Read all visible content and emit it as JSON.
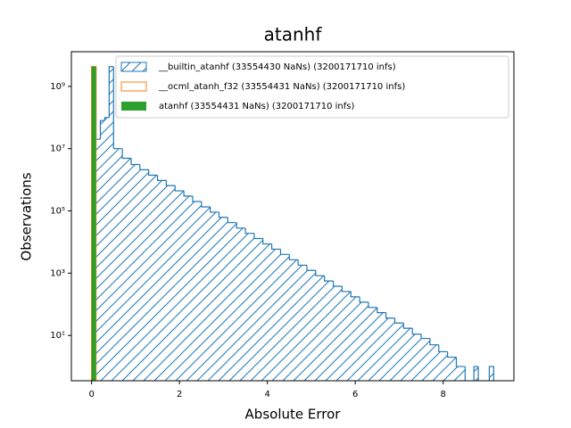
{
  "chart_data": {
    "type": "histogram",
    "title": "atanhf",
    "xlabel": "Absolute Error",
    "ylabel": "Observations",
    "yscale": "log",
    "xlim": [
      -0.46,
      9.61
    ],
    "ylim": [
      0.35,
      13000000000
    ],
    "xticks": [
      0,
      2,
      4,
      6,
      8
    ],
    "yticks": [
      {
        "value": 10,
        "label": "10¹"
      },
      {
        "value": 1000,
        "label": "10³"
      },
      {
        "value": 100000,
        "label": "10⁵"
      },
      {
        "value": 10000000,
        "label": "10⁷"
      },
      {
        "value": 1000000000,
        "label": "10⁹"
      }
    ],
    "legend": "upper right",
    "series": [
      {
        "name": "__builtin_atanhf (33554430 NaNs) (3200171710 infs)",
        "color": "#1f77b4",
        "style": "hatched",
        "bins": [
          0,
          0.1,
          0.2,
          0.3,
          0.4,
          0.5,
          0.7,
          0.9,
          1.1,
          1.3,
          1.5,
          1.7,
          1.9,
          2.1,
          2.3,
          2.5,
          2.7,
          2.9,
          3.1,
          3.3,
          3.5,
          3.7,
          3.9,
          4.1,
          4.3,
          4.5,
          4.7,
          4.9,
          5.1,
          5.3,
          5.5,
          5.7,
          5.9,
          6.1,
          6.3,
          6.5,
          6.7,
          6.9,
          7.1,
          7.3,
          7.5,
          7.7,
          7.9,
          8.1,
          8.3,
          8.5,
          8.7,
          8.8,
          9.05,
          9.15
        ],
        "values": [
          4300000000,
          20000000,
          80000000,
          100000000,
          4300000000,
          10000000,
          4900000,
          3100000,
          2100000,
          1400000,
          950000,
          650000,
          440000,
          300000,
          200000,
          135000,
          91000,
          62000,
          42000,
          28000,
          19000,
          13000,
          8700,
          5900,
          4000,
          2700,
          1800,
          1230,
          830,
          560,
          380,
          257,
          174,
          117,
          79,
          54,
          36,
          25,
          17,
          11,
          8,
          5,
          3,
          2,
          1,
          0,
          1,
          0,
          1
        ]
      },
      {
        "name": "__ocml_atanh_f32 (33554431 NaNs) (3200171710 infs)",
        "color": "#ff7f0e",
        "style": "outline",
        "bins": [
          0,
          0.1
        ],
        "values": [
          4300000000
        ]
      },
      {
        "name": "atanhf (33554431 NaNs) (3200171710 infs)",
        "color": "#2ca02c",
        "style": "filled",
        "bins": [
          0,
          0.1
        ],
        "values": [
          4300000000
        ]
      }
    ]
  }
}
